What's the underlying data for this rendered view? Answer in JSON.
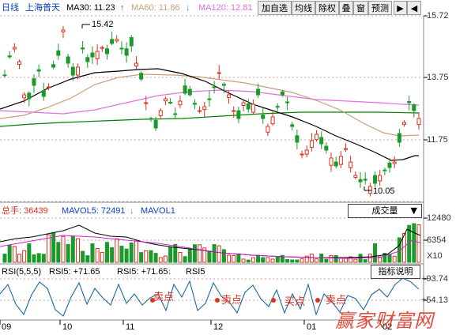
{
  "header": {
    "title": "日线",
    "stock_name": "上海普天",
    "ma30_label": "MA30: 11.23",
    "ma30_arrow": "↑",
    "ma60_label": "MA60: 11.86",
    "ma60_arrow": "↓",
    "ma120_label": "MA120: 12.81",
    "colors": {
      "ma30": "#000000",
      "ma60": "#c8a07a",
      "ma120": "#e070e0",
      "ma250": "#008000"
    }
  },
  "toolbar": {
    "add_watch": "加自选",
    "ma_lines": "均线",
    "ex_right": "除权",
    "overlay": "叠",
    "window": "窗",
    "forecast": "预测",
    "arrow_left": "◀",
    "arrow_right": "▶"
  },
  "price_axis": {
    "ticks": [
      "15.72",
      "13.75",
      "11.75"
    ]
  },
  "annotations": {
    "high": "15.42",
    "low": "10.05"
  },
  "volume": {
    "total_label": "总手: 36439",
    "mavol5_label": "MAVOL5: 72491",
    "mavol1_label": "MAVOL1",
    "selector_label": "成交量",
    "ticks": [
      "12480",
      "6354",
      "X10"
    ]
  },
  "rsi": {
    "params_label": "RSI(5,5,5)",
    "rsi5_label": "RSI5: +71.65",
    "rsi5b_label": "RSI5: +71.65",
    "rsi5c_label": "RSI5",
    "help_button": "指标说明",
    "ticks": [
      "+93.74",
      "+54.13"
    ],
    "signals": [
      "卖点",
      "卖点",
      "买点",
      "卖点"
    ]
  },
  "x_axis": {
    "ticks": [
      "09",
      "10",
      "11",
      "12",
      "01",
      "02"
    ]
  },
  "watermark": "赢家财富网"
}
